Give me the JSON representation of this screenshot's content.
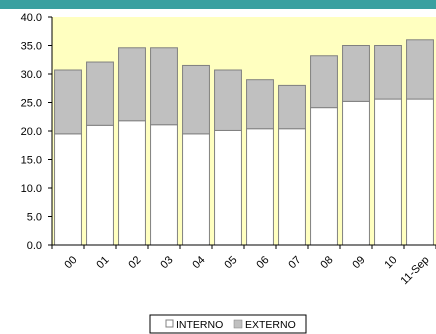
{
  "chart_data": {
    "type": "bar",
    "stacked": true,
    "categories": [
      "00",
      "01",
      "02",
      "03",
      "04",
      "05",
      "06",
      "07",
      "08",
      "09",
      "10",
      "11-Sep"
    ],
    "series": [
      {
        "name": "INTERNO",
        "color": "#ffffff",
        "values": [
          19.5,
          21.0,
          21.8,
          21.1,
          19.5,
          20.1,
          20.4,
          20.4,
          24.1,
          25.2,
          25.6,
          25.6
        ]
      },
      {
        "name": "EXTERNO",
        "color": "#c0c0c0",
        "values": [
          11.2,
          11.1,
          12.8,
          13.5,
          12.0,
          10.6,
          8.6,
          7.6,
          9.1,
          9.8,
          9.4,
          10.4
        ]
      }
    ],
    "ylim": [
      0,
      40
    ],
    "yticks": [
      "0.0",
      "5.0",
      "10.0",
      "15.0",
      "20.0",
      "25.0",
      "30.0",
      "35.0",
      "40.0"
    ],
    "grid": false,
    "plot_background": "#ffffc0",
    "accent_bar_color": "#3aa0a0",
    "legend_position": "bottom",
    "title": "",
    "xlabel": "",
    "ylabel": ""
  }
}
